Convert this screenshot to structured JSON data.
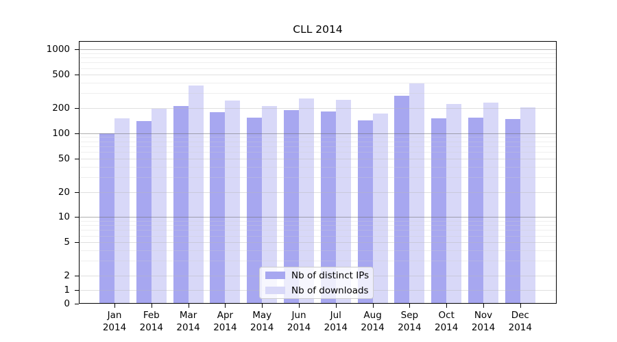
{
  "chart_data": {
    "type": "bar",
    "title": "CLL 2014",
    "categories": [
      "Jan 2014",
      "Feb 2014",
      "Mar 2014",
      "Apr 2014",
      "May 2014",
      "Jun 2014",
      "Jul 2014",
      "Aug 2014",
      "Sep 2014",
      "Oct 2014",
      "Nov 2014",
      "Dec 2014"
    ],
    "series": [
      {
        "name": "Nb of distinct IPs",
        "color": "#a7a7f0",
        "values": [
          100,
          140,
          210,
          178,
          155,
          188,
          182,
          142,
          283,
          150,
          155,
          147
        ]
      },
      {
        "name": "Nb of downloads",
        "color": "#d8d8f8",
        "values": [
          150,
          195,
          373,
          245,
          212,
          262,
          250,
          173,
          390,
          225,
          233,
          202
        ]
      }
    ],
    "xlabel": "",
    "ylabel": "",
    "yscale": "symlog",
    "linthresh": 2,
    "ylim": [
      0,
      1260
    ],
    "yticks": [
      0,
      1,
      2,
      5,
      10,
      20,
      50,
      100,
      200,
      500,
      1000
    ],
    "grid": true,
    "legend_position": "lower center"
  }
}
